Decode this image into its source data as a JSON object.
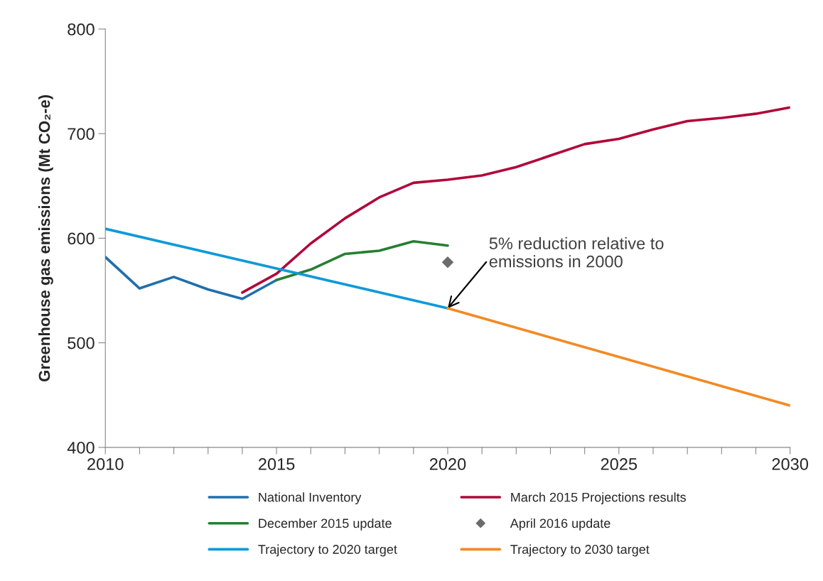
{
  "chart_data": {
    "type": "line",
    "ylabel": "Greenhouse gas emissions (Mt CO₂-e)",
    "xlim": [
      2010,
      2030
    ],
    "ylim": [
      400,
      800
    ],
    "xticks": [
      2010,
      {
        "value": 2011,
        "label": null
      },
      {
        "value": 2012,
        "label": null
      },
      {
        "value": 2013,
        "label": null
      },
      {
        "value": 2014,
        "label": null
      },
      2015,
      {
        "value": 2016,
        "label": null
      },
      {
        "value": 2017,
        "label": null
      },
      {
        "value": 2018,
        "label": null
      },
      {
        "value": 2019,
        "label": null
      },
      2020,
      {
        "value": 2021,
        "label": null
      },
      {
        "value": 2022,
        "label": null
      },
      {
        "value": 2023,
        "label": null
      },
      {
        "value": 2024,
        "label": null
      },
      2025,
      {
        "value": 2026,
        "label": null
      },
      {
        "value": 2027,
        "label": null
      },
      {
        "value": 2028,
        "label": null
      },
      {
        "value": 2029,
        "label": null
      },
      2030
    ],
    "yticks": [
      400,
      500,
      600,
      700,
      800
    ],
    "grid": false,
    "legend": "bottom",
    "marker": "none",
    "line_style": "solid",
    "series": [
      {
        "name": "National Inventory",
        "color": "#1f6fae",
        "x": [
          2010,
          2011,
          2012,
          2013,
          2014,
          2015
        ],
        "values": [
          582,
          552,
          563,
          551,
          542,
          560
        ]
      },
      {
        "name": "March 2015 Projections results",
        "color": "#b0083a",
        "x": [
          2014,
          2015,
          2016,
          2017,
          2018,
          2019,
          2020,
          2021,
          2022,
          2023,
          2024,
          2025,
          2026,
          2027,
          2028,
          2029,
          2030
        ],
        "values": [
          548,
          566,
          595,
          619,
          639,
          653,
          656,
          660,
          668,
          679,
          690,
          695,
          704,
          712,
          715,
          719,
          725
        ]
      },
      {
        "name": "December 2015 update",
        "color": "#267f30",
        "x": [
          2015,
          2016,
          2017,
          2018,
          2019,
          2020
        ],
        "values": [
          560,
          570,
          585,
          588,
          597,
          593
        ]
      },
      {
        "name": "April 2016 update",
        "color": "#6b6b6b",
        "type": "scatter",
        "marker": "diamond",
        "x": [
          2020
        ],
        "values": [
          577
        ]
      },
      {
        "name": "Trajectory to 2020 target",
        "color": "#0e9ad8",
        "x": [
          2010,
          2020
        ],
        "values": [
          609,
          533
        ]
      },
      {
        "name": "Trajectory to 2030 target",
        "color": "#f28a24",
        "x": [
          2020,
          2030
        ],
        "values": [
          533,
          440
        ]
      }
    ],
    "annotations": [
      {
        "text": "5% reduction relative to\nemissions in 2000",
        "x": 2020,
        "y": 533
      }
    ]
  }
}
